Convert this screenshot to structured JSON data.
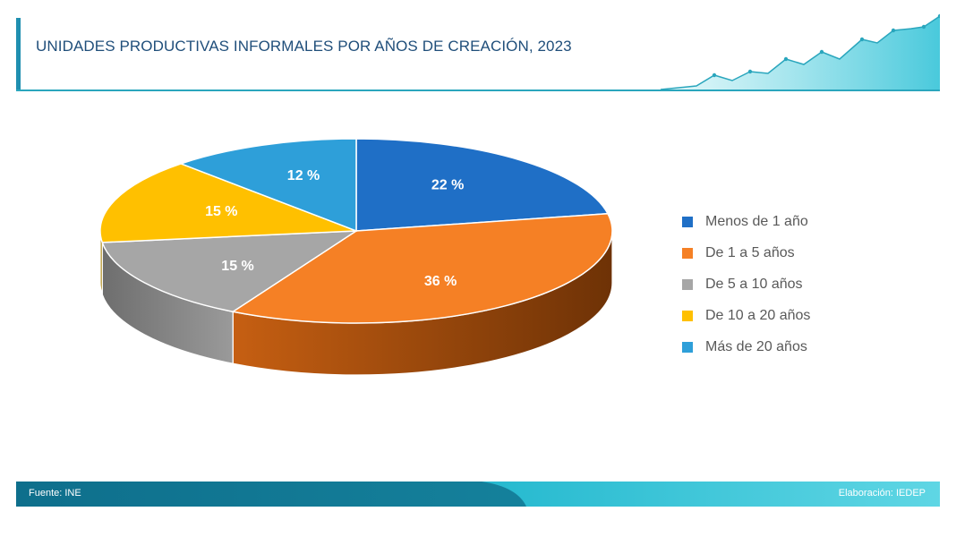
{
  "header": {
    "title": "UNIDADES PRODUCTIVAS INFORMALES POR AÑOS DE CREACIÓN, 2023"
  },
  "chart_data": {
    "type": "pie",
    "title": "UNIDADES PRODUCTIVAS INFORMALES POR AÑOS DE CREACIÓN, 2023",
    "categories": [
      "Menos de 1 año",
      "De 1 a 5 años",
      "De 5 a 10 años",
      "De 10 a 20 años",
      "Más de 20 años"
    ],
    "values": [
      22,
      36,
      15,
      15,
      12
    ],
    "value_labels": [
      "22 %",
      "36 %",
      "15 %",
      "15 %",
      "12 %"
    ],
    "colors": [
      "#1f6fc6",
      "#f58025",
      "#a6a6a6",
      "#ffc000",
      "#2e9fd9"
    ],
    "legend_position": "right",
    "style": "3d-pie"
  },
  "legend": {
    "items": [
      {
        "label": "Menos de 1 año",
        "color": "#1f6fc6"
      },
      {
        "label": "De 1 a 5 años",
        "color": "#f58025"
      },
      {
        "label": "De 5 a 10 años",
        "color": "#a6a6a6"
      },
      {
        "label": "De 10 a 20 años",
        "color": "#ffc000"
      },
      {
        "label": "Más de 20 años",
        "color": "#2e9fd9"
      }
    ]
  },
  "footer": {
    "source": "Fuente: INE",
    "credit": "Elaboración: IEDEP"
  }
}
